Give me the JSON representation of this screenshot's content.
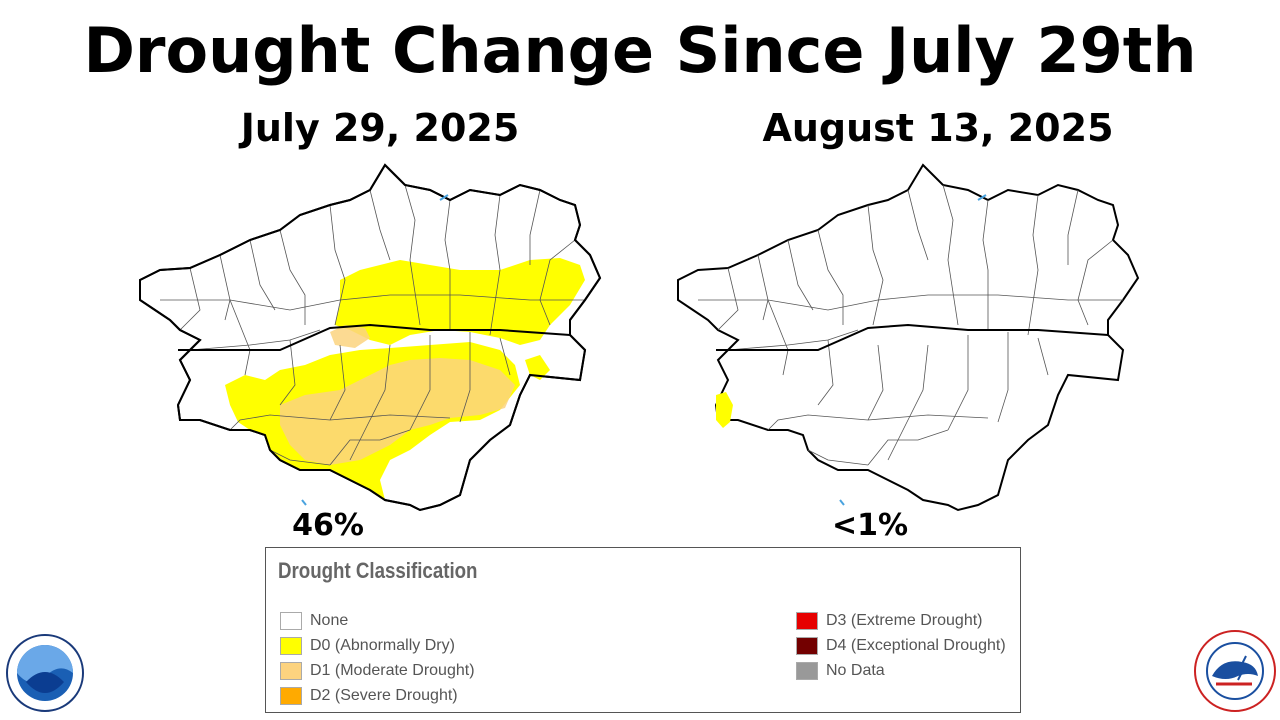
{
  "title": "Drought Change Since July 29th",
  "maps": {
    "left": {
      "date": "July 29, 2025",
      "percent": "46%"
    },
    "right": {
      "date": "August 13, 2025",
      "percent": "<1%"
    }
  },
  "legend": {
    "title": "Drought Classification",
    "items": [
      {
        "label": "None",
        "color": "#ffffff"
      },
      {
        "label": "D0 (Abnormally Dry)",
        "color": "#ffff00"
      },
      {
        "label": "D1 (Moderate Drought)",
        "color": "#fcd37f"
      },
      {
        "label": "D2 (Severe Drought)",
        "color": "#ffaa00"
      },
      {
        "label": "D3 (Extreme Drought)",
        "color": "#e60000"
      },
      {
        "label": "D4 (Exceptional Drought)",
        "color": "#730000"
      },
      {
        "label": "No Data",
        "color": "#999999"
      }
    ]
  },
  "logos": {
    "left": "noaa-logo",
    "right": "nws-logo"
  }
}
